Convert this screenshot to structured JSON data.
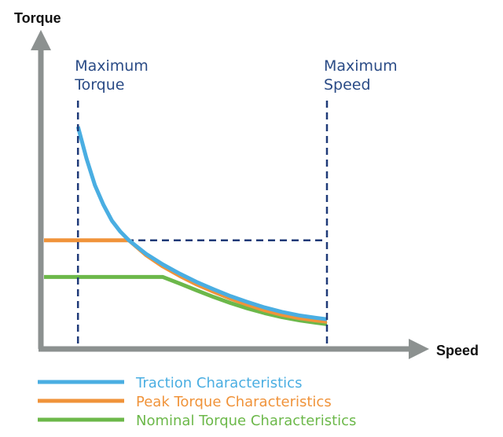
{
  "chart_data": {
    "type": "line",
    "xlabel": "Speed",
    "ylabel": "Torque",
    "xlim": [
      0,
      100
    ],
    "ylim": [
      0,
      100
    ],
    "grid": false,
    "legend_position": "bottom-left",
    "annotations": [
      {
        "id": "max-torque",
        "lines": [
          "Maximum",
          "Torque"
        ],
        "x": 12
      },
      {
        "id": "max-speed",
        "lines": [
          "Maximum",
          "Speed"
        ],
        "x": 100
      }
    ],
    "reference_lines": [
      {
        "orientation": "horizontal",
        "y": 43.5,
        "x_range": [
          0,
          100
        ]
      }
    ],
    "series": [
      {
        "name": "Traction Characteristics",
        "color": "#4aaee2",
        "x": [
          12,
          15,
          18,
          21,
          24,
          27,
          30,
          36,
          42,
          48,
          54,
          60,
          66,
          72,
          78,
          84,
          90,
          96,
          100
        ],
        "y": [
          90,
          77,
          66,
          58,
          51.5,
          47,
          43.5,
          38,
          33.6,
          29.8,
          26.4,
          23.4,
          20.6,
          18.2,
          16,
          14.2,
          12.8,
          11.8,
          11.2
        ]
      },
      {
        "name": "Peak Torque Characteristics",
        "color": "#f0933a",
        "x": [
          0,
          30,
          36,
          42,
          48,
          54,
          60,
          66,
          72,
          78,
          84,
          90,
          96,
          100
        ],
        "y": [
          43.5,
          43.5,
          37.5,
          32.8,
          28.9,
          25.4,
          22.4,
          19.6,
          17.1,
          14.9,
          13.1,
          11.7,
          10.7,
          10.2
        ]
      },
      {
        "name": "Nominal Torque Characteristics",
        "color": "#6cb84a",
        "x": [
          0,
          12,
          24,
          42,
          48,
          54,
          60,
          66,
          72,
          78,
          84,
          90,
          96,
          100
        ],
        "y": [
          28.5,
          28.5,
          28.5,
          28.5,
          25.8,
          23,
          20.3,
          17.8,
          15.6,
          13.7,
          12.1,
          10.8,
          9.8,
          9.2
        ]
      }
    ]
  }
}
